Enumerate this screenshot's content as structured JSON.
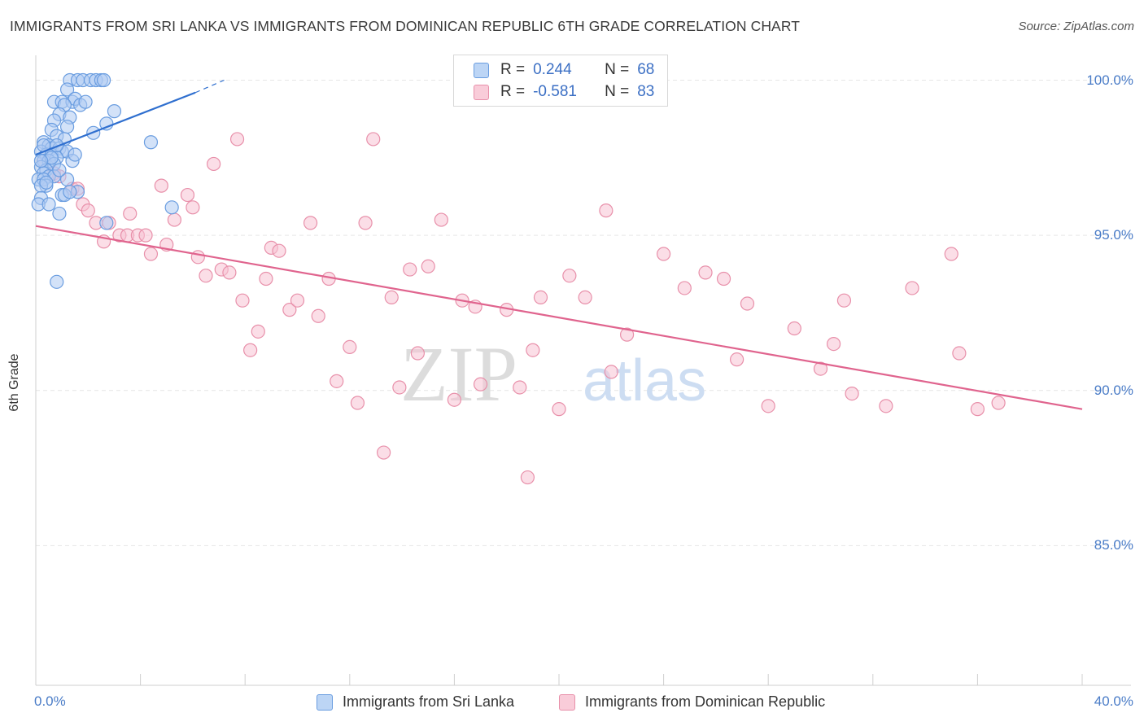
{
  "chart_data": {
    "type": "scatter",
    "title": "IMMIGRANTS FROM SRI LANKA VS IMMIGRANTS FROM DOMINICAN REPUBLIC 6TH GRADE CORRELATION CHART",
    "source": "Source: ZipAtlas.com",
    "ylabel": "6th Grade",
    "xlim": [
      0,
      40
    ],
    "ylim": [
      80.5,
      100.8
    ],
    "x_tick_labels": [
      {
        "value": 0,
        "label": "0.0%"
      },
      {
        "value": 40,
        "label": "40.0%"
      }
    ],
    "y_tick_labels": [
      {
        "value": 100,
        "label": "100.0%"
      },
      {
        "value": 95,
        "label": "95.0%"
      },
      {
        "value": 90,
        "label": "90.0%"
      },
      {
        "value": 85,
        "label": "85.0%"
      }
    ],
    "watermark": {
      "part1": "ZIP",
      "part2": "atlas"
    },
    "legend": [
      {
        "r_label": "R =",
        "r": "0.244",
        "n_label": "N =",
        "n": "68"
      },
      {
        "r_label": "R =",
        "r": "-0.581",
        "n_label": "N =",
        "n": "83"
      }
    ],
    "series": [
      {
        "name": "Immigrants from Sri Lanka",
        "color": "#6a9de0",
        "fill": "#aecbf2",
        "line_color": "#2f6fcf",
        "trend": {
          "x0": 0.0,
          "y0": 97.6,
          "x1": 6.1,
          "y1": 99.6,
          "dash_x1": 7.2,
          "dash_y1": 100.0
        },
        "points": [
          [
            1.3,
            100.0
          ],
          [
            1.6,
            100.0
          ],
          [
            1.8,
            100.0
          ],
          [
            2.1,
            100.0
          ],
          [
            2.3,
            100.0
          ],
          [
            2.5,
            100.0
          ],
          [
            2.6,
            100.0
          ],
          [
            1.2,
            99.7
          ],
          [
            0.7,
            99.3
          ],
          [
            1.0,
            99.3
          ],
          [
            1.4,
            99.3
          ],
          [
            1.5,
            99.4
          ],
          [
            1.7,
            99.2
          ],
          [
            1.9,
            99.3
          ],
          [
            3.0,
            99.0
          ],
          [
            1.1,
            99.2
          ],
          [
            0.9,
            98.9
          ],
          [
            1.3,
            98.8
          ],
          [
            0.7,
            98.7
          ],
          [
            2.7,
            98.6
          ],
          [
            1.2,
            98.5
          ],
          [
            0.6,
            98.4
          ],
          [
            2.2,
            98.3
          ],
          [
            0.8,
            98.2
          ],
          [
            1.1,
            98.1
          ],
          [
            0.3,
            98.0
          ],
          [
            0.5,
            97.9
          ],
          [
            0.6,
            97.8
          ],
          [
            0.9,
            97.8
          ],
          [
            1.0,
            97.7
          ],
          [
            1.2,
            97.7
          ],
          [
            0.2,
            97.7
          ],
          [
            0.4,
            97.6
          ],
          [
            0.6,
            97.6
          ],
          [
            0.8,
            97.5
          ],
          [
            0.3,
            97.4
          ],
          [
            0.5,
            97.4
          ],
          [
            0.7,
            97.3
          ],
          [
            1.4,
            97.4
          ],
          [
            0.2,
            97.2
          ],
          [
            0.4,
            97.1
          ],
          [
            0.3,
            97.0
          ],
          [
            0.5,
            96.9
          ],
          [
            0.7,
            96.9
          ],
          [
            0.1,
            96.8
          ],
          [
            0.3,
            96.8
          ],
          [
            1.2,
            96.8
          ],
          [
            0.4,
            96.6
          ],
          [
            0.2,
            96.6
          ],
          [
            1.6,
            96.4
          ],
          [
            1.0,
            96.3
          ],
          [
            1.1,
            96.3
          ],
          [
            0.2,
            96.2
          ],
          [
            0.1,
            96.0
          ],
          [
            0.5,
            96.0
          ],
          [
            5.2,
            95.9
          ],
          [
            0.9,
            95.7
          ],
          [
            2.7,
            95.4
          ],
          [
            0.8,
            93.5
          ],
          [
            4.4,
            98.0
          ],
          [
            0.6,
            97.5
          ],
          [
            0.3,
            97.9
          ],
          [
            1.5,
            97.6
          ],
          [
            0.9,
            97.1
          ],
          [
            0.4,
            96.7
          ],
          [
            1.3,
            96.4
          ],
          [
            0.2,
            97.4
          ],
          [
            0.8,
            97.9
          ]
        ]
      },
      {
        "name": "Immigrants from Dominican Republic",
        "color": "#e890aa",
        "fill": "#f7c3d3",
        "line_color": "#e0648e",
        "trend": {
          "x0": 0.0,
          "y0": 95.3,
          "x1": 40.0,
          "y1": 89.4
        },
        "points": [
          [
            0.3,
            97.4
          ],
          [
            0.7,
            97.0
          ],
          [
            0.9,
            96.9
          ],
          [
            1.4,
            96.5
          ],
          [
            1.6,
            96.5
          ],
          [
            1.8,
            96.0
          ],
          [
            2.0,
            95.8
          ],
          [
            2.3,
            95.4
          ],
          [
            2.6,
            94.8
          ],
          [
            2.8,
            95.4
          ],
          [
            3.2,
            95.0
          ],
          [
            3.5,
            95.0
          ],
          [
            3.6,
            95.7
          ],
          [
            3.9,
            95.0
          ],
          [
            4.2,
            95.0
          ],
          [
            4.4,
            94.4
          ],
          [
            4.8,
            96.6
          ],
          [
            5.0,
            94.7
          ],
          [
            5.3,
            95.5
          ],
          [
            5.8,
            96.3
          ],
          [
            6.0,
            95.9
          ],
          [
            6.2,
            94.3
          ],
          [
            6.5,
            93.7
          ],
          [
            6.8,
            97.3
          ],
          [
            7.1,
            93.9
          ],
          [
            7.4,
            93.8
          ],
          [
            7.7,
            98.1
          ],
          [
            7.9,
            92.9
          ],
          [
            8.2,
            91.3
          ],
          [
            8.5,
            91.9
          ],
          [
            8.8,
            93.6
          ],
          [
            9.0,
            94.6
          ],
          [
            9.3,
            94.5
          ],
          [
            9.7,
            92.6
          ],
          [
            10.0,
            92.9
          ],
          [
            10.5,
            95.4
          ],
          [
            10.8,
            92.4
          ],
          [
            11.2,
            93.6
          ],
          [
            11.5,
            90.3
          ],
          [
            12.0,
            91.4
          ],
          [
            12.3,
            89.6
          ],
          [
            12.6,
            95.4
          ],
          [
            12.9,
            98.1
          ],
          [
            13.3,
            88.0
          ],
          [
            13.6,
            93.0
          ],
          [
            13.9,
            90.1
          ],
          [
            14.3,
            93.9
          ],
          [
            14.6,
            91.2
          ],
          [
            15.0,
            94.0
          ],
          [
            15.5,
            95.5
          ],
          [
            16.0,
            89.7
          ],
          [
            16.3,
            92.9
          ],
          [
            16.8,
            92.7
          ],
          [
            17.0,
            90.2
          ],
          [
            18.0,
            92.6
          ],
          [
            18.5,
            90.1
          ],
          [
            18.8,
            87.2
          ],
          [
            19.0,
            91.3
          ],
          [
            19.3,
            93.0
          ],
          [
            20.0,
            89.4
          ],
          [
            20.4,
            93.7
          ],
          [
            21.0,
            93.0
          ],
          [
            21.8,
            95.8
          ],
          [
            22.0,
            90.6
          ],
          [
            22.6,
            91.8
          ],
          [
            24.0,
            94.4
          ],
          [
            24.8,
            93.3
          ],
          [
            25.6,
            93.8
          ],
          [
            26.3,
            93.6
          ],
          [
            26.8,
            91.0
          ],
          [
            27.2,
            92.8
          ],
          [
            28.0,
            89.5
          ],
          [
            29.0,
            92.0
          ],
          [
            30.0,
            90.7
          ],
          [
            30.5,
            91.5
          ],
          [
            30.9,
            92.9
          ],
          [
            31.2,
            89.9
          ],
          [
            32.5,
            89.5
          ],
          [
            33.5,
            93.3
          ],
          [
            35.0,
            94.4
          ],
          [
            35.3,
            91.2
          ],
          [
            36.0,
            89.4
          ],
          [
            36.8,
            89.6
          ]
        ]
      }
    ]
  }
}
